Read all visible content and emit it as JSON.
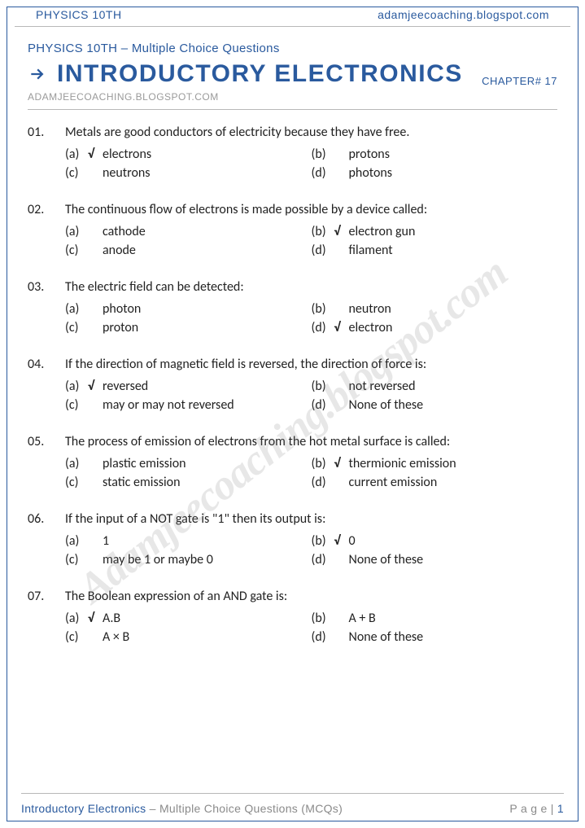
{
  "header": {
    "left": "PHYSICS 10TH",
    "right": "adamjeecoaching.blogspot.com"
  },
  "title": {
    "subtitle": "PHYSICS 10TH – Multiple Choice Questions",
    "main": "INTRODUCTORY ELECTRONICS",
    "chapter": "CHAPTER# 17",
    "source": "ADAMJEECOACHING.BLOGSPOT.COM"
  },
  "watermark": "Adamjeecoaching.blogspot.com",
  "questions": [
    {
      "num": "01.",
      "text": "Metals are good conductors of electricity because they have free.",
      "opts": [
        {
          "l": "(a)",
          "c": "√",
          "t": "electrons"
        },
        {
          "l": "(b)",
          "c": "",
          "t": "protons"
        },
        {
          "l": "(c)",
          "c": "",
          "t": "neutrons"
        },
        {
          "l": "(d)",
          "c": "",
          "t": "photons"
        }
      ]
    },
    {
      "num": "02.",
      "text": "The continuous flow of electrons is made possible by a device called:",
      "opts": [
        {
          "l": "(a)",
          "c": "",
          "t": "cathode"
        },
        {
          "l": "(b)",
          "c": "√",
          "t": "electron gun"
        },
        {
          "l": "(c)",
          "c": "",
          "t": "anode"
        },
        {
          "l": "(d)",
          "c": "",
          "t": "filament"
        }
      ]
    },
    {
      "num": "03.",
      "text": "The electric field can be detected:",
      "opts": [
        {
          "l": "(a)",
          "c": "",
          "t": "photon"
        },
        {
          "l": "(b)",
          "c": "",
          "t": "neutron"
        },
        {
          "l": "(c)",
          "c": "",
          "t": "proton"
        },
        {
          "l": "(d)",
          "c": "√",
          "t": "electron"
        }
      ]
    },
    {
      "num": "04.",
      "text": "If the direction of magnetic field is reversed, the direction of force is:",
      "opts": [
        {
          "l": "(a)",
          "c": "√",
          "t": "reversed"
        },
        {
          "l": "(b)",
          "c": "",
          "t": "not reversed"
        },
        {
          "l": "(c)",
          "c": "",
          "t": "may or may not reversed"
        },
        {
          "l": "(d)",
          "c": "",
          "t": "None of these"
        }
      ]
    },
    {
      "num": "05.",
      "text": "The process of emission of electrons from the hot metal surface is called:",
      "opts": [
        {
          "l": "(a)",
          "c": "",
          "t": "plastic emission"
        },
        {
          "l": "(b)",
          "c": "√",
          "t": "thermionic emission"
        },
        {
          "l": "(c)",
          "c": "",
          "t": "static emission"
        },
        {
          "l": "(d)",
          "c": "",
          "t": "current emission"
        }
      ]
    },
    {
      "num": "06.",
      "text": "If the input of a NOT gate is \"1\" then its output is:",
      "opts": [
        {
          "l": "(a)",
          "c": "",
          "t": "1"
        },
        {
          "l": "(b)",
          "c": "√",
          "t": "0"
        },
        {
          "l": "(c)",
          "c": "",
          "t": "may be 1 or maybe 0"
        },
        {
          "l": "(d)",
          "c": "",
          "t": "None of these"
        }
      ]
    },
    {
      "num": "07.",
      "text": "The Boolean expression of an AND gate is:",
      "opts": [
        {
          "l": "(a)",
          "c": "√",
          "t": "A.B"
        },
        {
          "l": "(b)",
          "c": "",
          "t": "A + B"
        },
        {
          "l": "(c)",
          "c": "",
          "t": "A × B"
        },
        {
          "l": "(d)",
          "c": "",
          "t": "None of these"
        }
      ]
    }
  ],
  "footer": {
    "left_a": "Introductory Electronics",
    "left_b": " – Multiple Choice Questions (MCQs)",
    "page_label": "P a g e  | ",
    "page_num": "1"
  },
  "colors": {
    "accent": "#2a5a9e",
    "text": "#222222",
    "muted": "#8a8a8a",
    "border": "#b8b8b8"
  }
}
